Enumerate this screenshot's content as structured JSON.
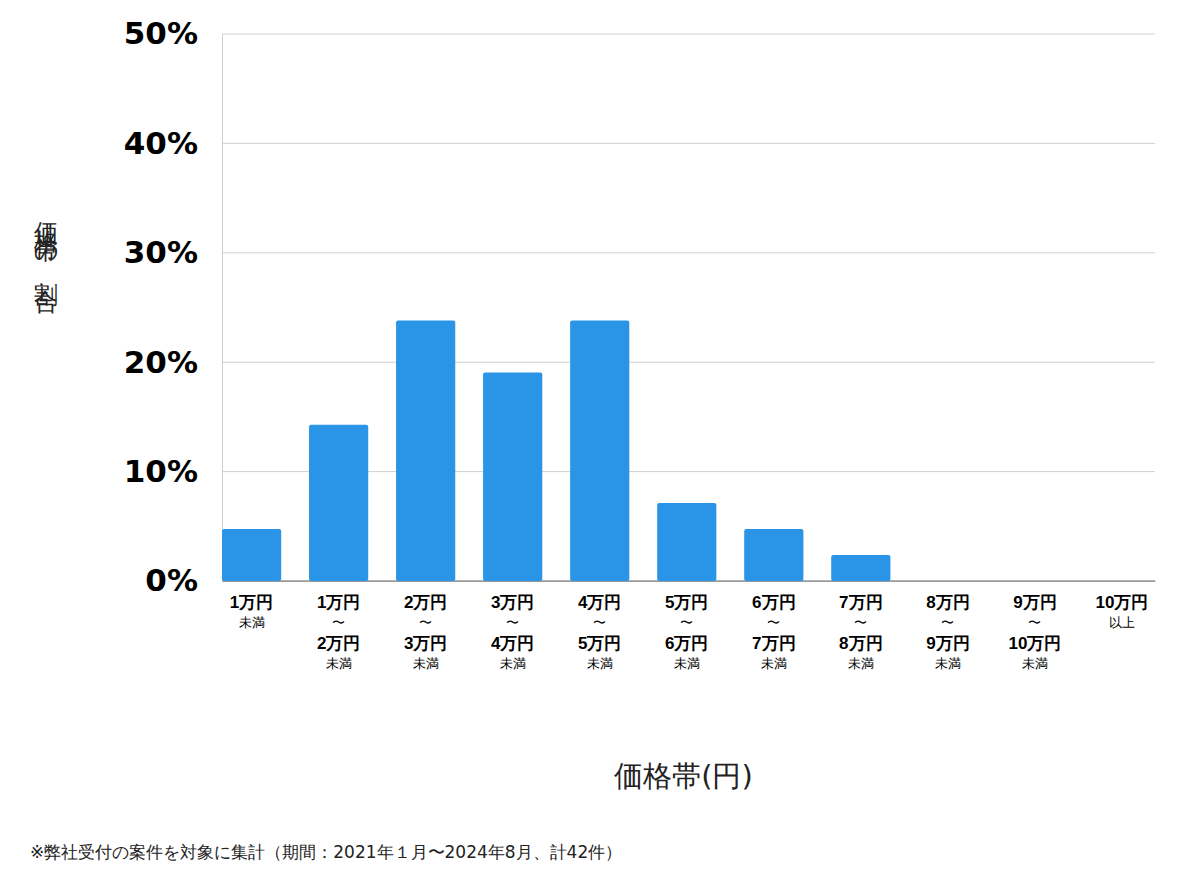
{
  "chart_data": {
    "type": "bar",
    "y_label": "価格帯の割合",
    "x_label": "価格帯(円)",
    "note": "※弊社受付の案件を対象に集計（期間：2021年１月〜2024年8月、計42件）",
    "categories": [
      "1万円\n未満",
      "1万円\n〜\n2万円\n未満",
      "2万円\n〜\n3万円\n未満",
      "3万円\n〜\n4万円\n未満",
      "4万円\n〜\n5万円\n未満",
      "5万円\n〜\n6万円\n未満",
      "6万円\n〜\n7万円\n未満",
      "7万円\n〜\n8万円\n未満",
      "8万円\n〜\n9万円\n未満",
      "9万円\n〜\n10万円\n未満",
      "10万円\n以上"
    ],
    "values": [
      4.76,
      14.29,
      23.81,
      19.05,
      23.81,
      7.14,
      4.76,
      2.38,
      0,
      0,
      0
    ],
    "color": "#2a94e6",
    "ylim": [
      0,
      50
    ],
    "yticks": [
      {
        "value": 0,
        "label": "0%"
      },
      {
        "value": 10,
        "label": "10%"
      },
      {
        "value": 20,
        "label": "20%"
      },
      {
        "value": 30,
        "label": "30%"
      },
      {
        "value": 40,
        "label": "40%"
      },
      {
        "value": 50,
        "label": "50%"
      }
    ],
    "grid": true
  }
}
